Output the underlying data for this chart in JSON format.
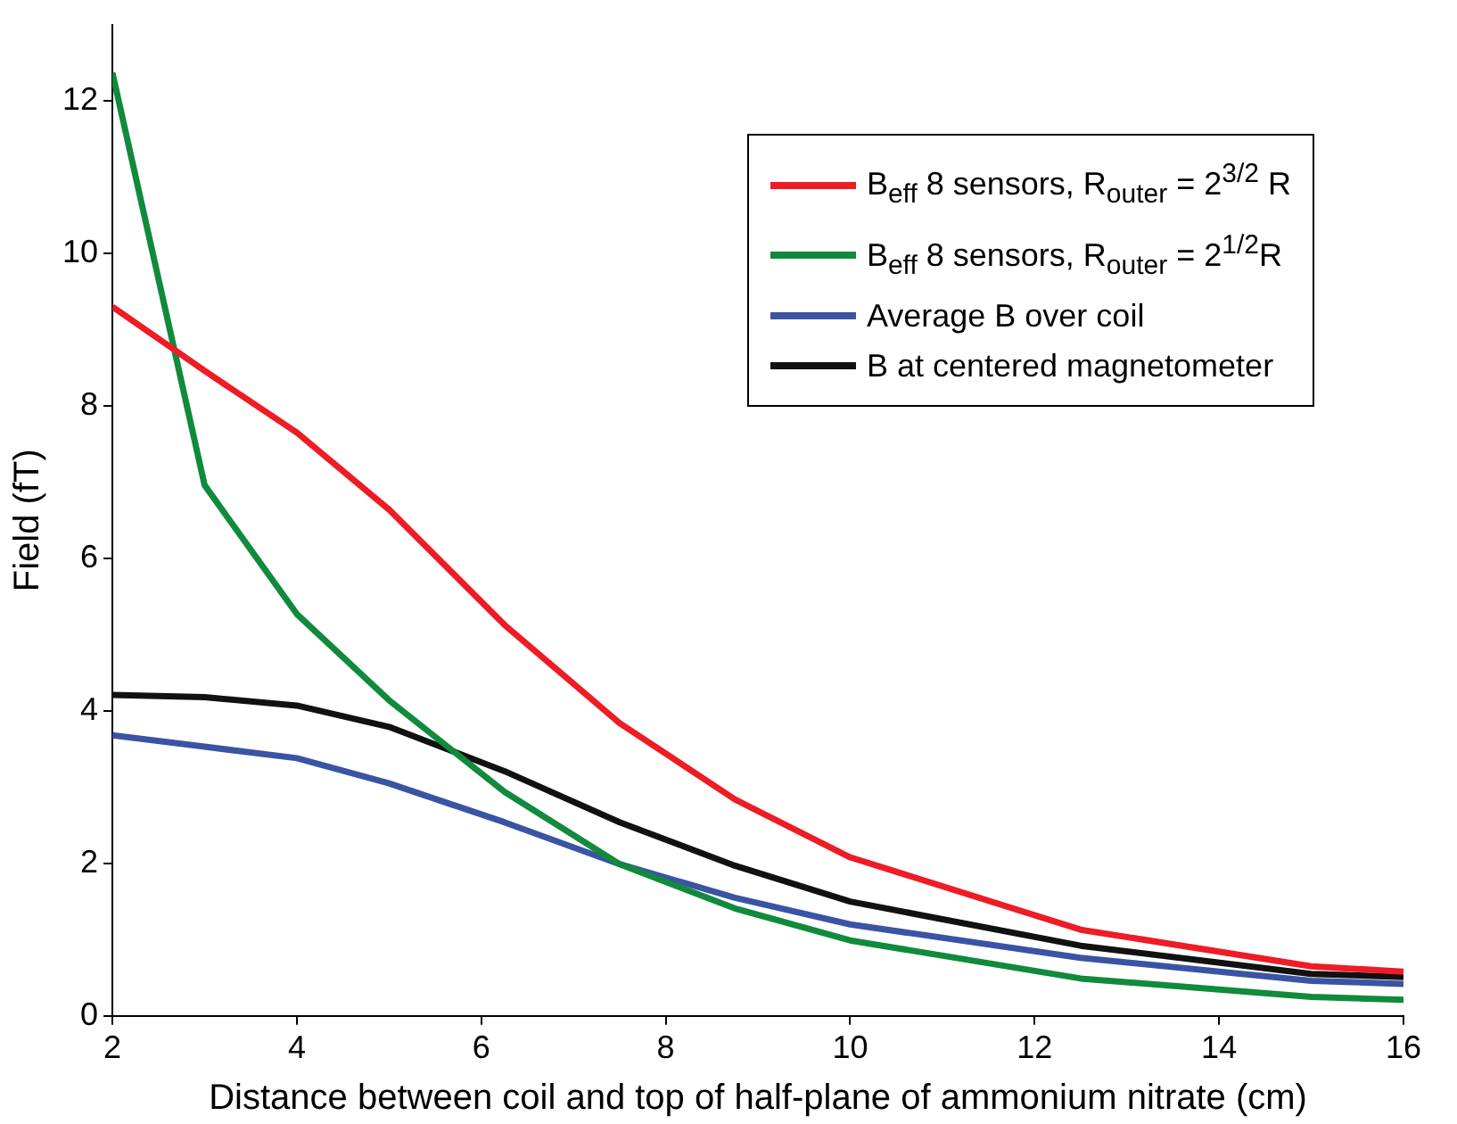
{
  "chart_data": {
    "type": "line",
    "xlabel": "Distance between coil and top of half-plane of ammonium nitrate (cm)",
    "ylabel": "Field (fT)",
    "xlim": [
      2,
      16
    ],
    "xticks": [
      2,
      4,
      6,
      8,
      10,
      12,
      14,
      16
    ],
    "ylim": [
      0,
      13
    ],
    "yticks": [
      0,
      2,
      4,
      6,
      8,
      10,
      12
    ],
    "x": [
      2,
      3,
      4,
      5,
      6.25,
      7.5,
      8.75,
      10,
      12.5,
      15,
      16
    ],
    "series": [
      {
        "name": "B$_{eff}$ 8 sensors, R$_{outer}$ = 2$^{3/2}$  R",
        "color": "#ee1c25",
        "values": [
          9.3,
          8.46,
          7.65,
          6.64,
          5.13,
          3.84,
          2.84,
          2.08,
          1.13,
          0.65,
          0.58
        ]
      },
      {
        "name": "B$_{eff}$ 8 sensors, R$_{outer}$ = 2$^{1/2}$R",
        "color": "#108a3c",
        "values": [
          12.37,
          6.96,
          5.27,
          4.14,
          2.94,
          1.99,
          1.41,
          0.99,
          0.49,
          0.25,
          0.21
        ]
      },
      {
        "name": "Average B over coil",
        "color": "#3a54a4",
        "values": [
          3.68,
          3.53,
          3.38,
          3.05,
          2.54,
          1.99,
          1.55,
          1.2,
          0.76,
          0.46,
          0.42
        ]
      },
      {
        "name": "B at centered magnetometer",
        "color": "#111111",
        "values": [
          4.21,
          4.18,
          4.07,
          3.79,
          3.21,
          2.54,
          1.97,
          1.5,
          0.92,
          0.55,
          0.51
        ]
      }
    ],
    "grid": false,
    "legend": "top right",
    "marker": "none",
    "line_style": "solid"
  }
}
